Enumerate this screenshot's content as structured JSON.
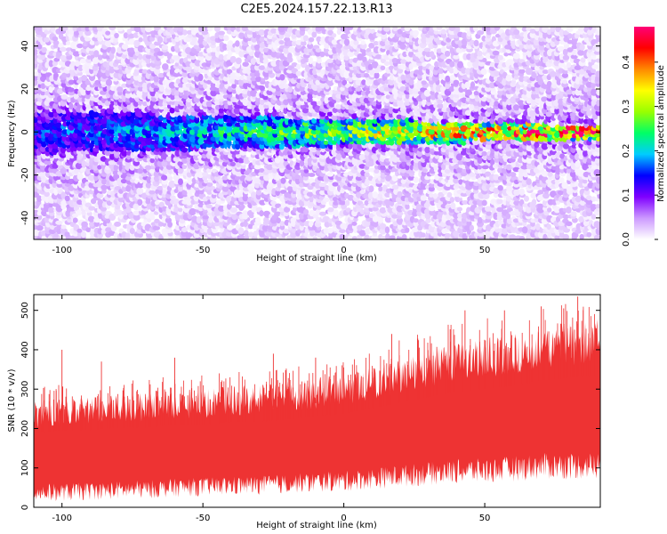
{
  "title": "C2E5.2024.157.22.13.R13",
  "chart_data": [
    {
      "type": "heatmap",
      "xlabel": "Height of straight line (km)",
      "ylabel": "Frequency (Hz)",
      "xlim": [
        -110,
        91
      ],
      "ylim": [
        -50,
        49
      ],
      "x_ticks": [
        -100,
        -50,
        0,
        50
      ],
      "y_ticks": [
        -40,
        -20,
        0,
        20,
        40
      ],
      "band_center_hz": 0,
      "band_halfwidth_hz_left": 10,
      "band_halfwidth_hz_right": 3,
      "colorbar": {
        "label": "Normalized spectral amplitude",
        "range": [
          0,
          0.48
        ],
        "ticks": [
          0,
          0.1,
          0.2,
          0.3,
          0.4
        ],
        "colors": [
          "#ffffff",
          "#cc99ff",
          "#7f00ff",
          "#0000ff",
          "#00ccff",
          "#00ff66",
          "#99ff00",
          "#ffff00",
          "#ff8800",
          "#ff0000",
          "#ff0077"
        ]
      },
      "grid": false
    },
    {
      "type": "area",
      "xlabel": "Height of straight line (km)",
      "ylabel": "SNR (10 * v/v)",
      "xlim": [
        -110,
        91
      ],
      "ylim": [
        0,
        540
      ],
      "x_ticks": [
        -100,
        -50,
        0,
        50
      ],
      "y_ticks": [
        0,
        100,
        200,
        300,
        400,
        500
      ],
      "color": "#ee3333",
      "x": [
        -110,
        -100,
        -90,
        -80,
        -70,
        -60,
        -50,
        -40,
        -30,
        -20,
        -10,
        0,
        10,
        20,
        30,
        40,
        50,
        60,
        70,
        80,
        91
      ],
      "lower": [
        15,
        15,
        18,
        20,
        22,
        25,
        28,
        30,
        32,
        35,
        38,
        40,
        45,
        50,
        55,
        60,
        60,
        65,
        70,
        70,
        70
      ],
      "upper": [
        270,
        280,
        280,
        290,
        290,
        300,
        300,
        310,
        310,
        320,
        330,
        340,
        360,
        380,
        400,
        420,
        430,
        440,
        460,
        470,
        480
      ],
      "spikes": [
        [
          -100,
          400
        ],
        [
          -86,
          370
        ],
        [
          -60,
          380
        ],
        [
          -25,
          390
        ],
        [
          -10,
          380
        ],
        [
          17,
          440
        ],
        [
          43,
          500
        ],
        [
          57,
          500
        ],
        [
          70,
          510
        ],
        [
          78,
          505
        ],
        [
          83,
          535
        ]
      ],
      "grid": false
    }
  ]
}
